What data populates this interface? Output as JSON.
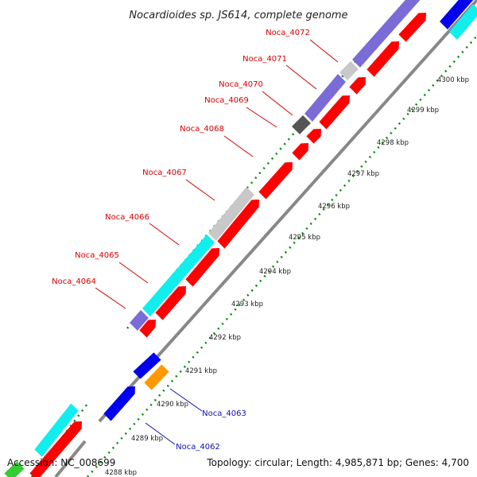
{
  "title": "Nocardioides sp. JS614, complete genome",
  "footer": {
    "accession": "Accession: NC_008699",
    "topology": "Topology: circular; Length: 4,985,871 bp; Genes: 4,700"
  },
  "colors": {
    "cds_forward": "#ff0000",
    "cds_purple": "#7b6bd6",
    "cds_cyan": "#10eeee",
    "cds_gray": "#c8c8c8",
    "cds_dark": "#555555",
    "cds_blue": "#0000ee",
    "cds_orange": "#ff9900",
    "cds_green": "#33cc33",
    "label_red": "#d40000",
    "label_blue": "#1010b0",
    "dots": "#008800",
    "backbone": "#888888"
  },
  "gene_labels": [
    {
      "name": "Noca_4072",
      "color": "red"
    },
    {
      "name": "Noca_4071",
      "color": "red"
    },
    {
      "name": "Noca_4070",
      "color": "red"
    },
    {
      "name": "Noca_4069",
      "color": "red"
    },
    {
      "name": "Noca_4068",
      "color": "red"
    },
    {
      "name": "Noca_4067",
      "color": "red"
    },
    {
      "name": "Noca_4066",
      "color": "red"
    },
    {
      "name": "Noca_4065",
      "color": "red"
    },
    {
      "name": "Noca_4064",
      "color": "red"
    },
    {
      "name": "Noca_4063",
      "color": "blue"
    },
    {
      "name": "Noca_4062",
      "color": "blue"
    }
  ],
  "ticks": [
    "4300 kbp",
    "4299 kbp",
    "4298 kbp",
    "4297 kbp",
    "4296 kbp",
    "4295 kbp",
    "4294 kbp",
    "4293 kbp",
    "4292 kbp",
    "4291 kbp",
    "4290 kbp",
    "4289 kbp",
    "4288 kbp"
  ]
}
